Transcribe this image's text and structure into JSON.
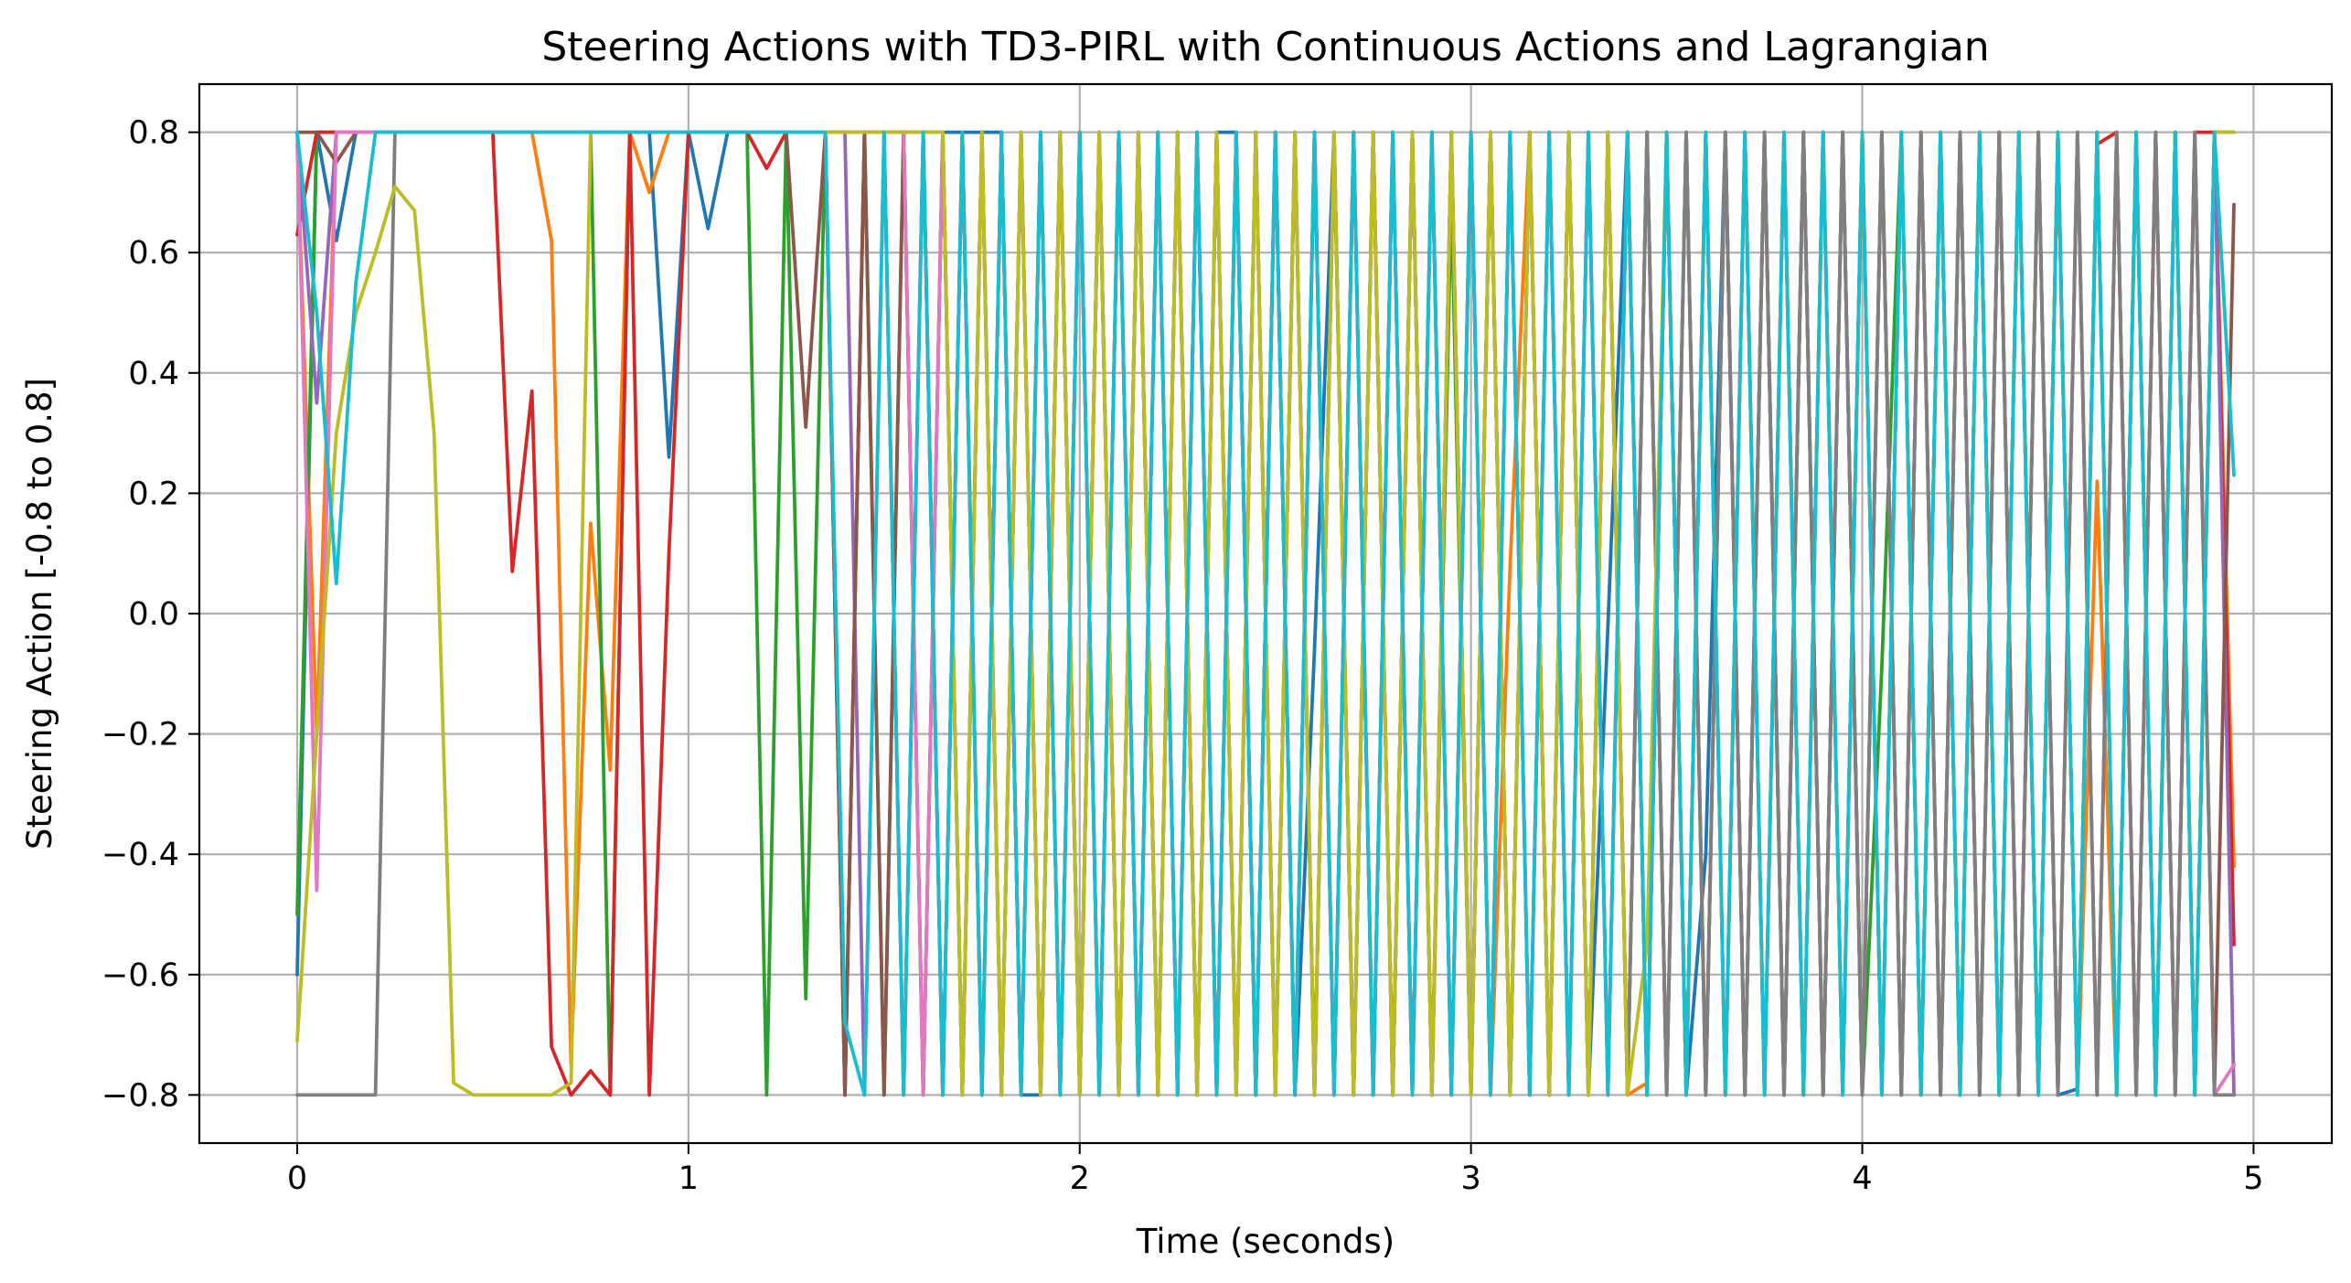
{
  "chart_data": {
    "type": "line",
    "title": "Steering Actions with TD3-PIRL with Continuous Actions and Lagrangian",
    "xlabel": "Time (seconds)",
    "ylabel": "Steering Action [-0.8 to 0.8]",
    "xlim": [
      -0.25,
      5.2
    ],
    "ylim": [
      -0.88,
      0.88
    ],
    "x_ticks": [
      0,
      1,
      2,
      3,
      4,
      5
    ],
    "y_ticks": [
      -0.8,
      -0.6,
      -0.4,
      -0.2,
      0.0,
      0.2,
      0.4,
      0.6,
      0.8
    ],
    "x_tick_labels": [
      "0",
      "1",
      "2",
      "3",
      "4",
      "5"
    ],
    "y_tick_labels": [
      "−0.8",
      "−0.6",
      "−0.4",
      "−0.2",
      "0.0",
      "0.2",
      "0.4",
      "0.6",
      "0.8"
    ],
    "grid": true,
    "legend": "none",
    "time_step": 0.05,
    "num_points": 100,
    "colors": [
      "#1f77b4",
      "#ff7f0e",
      "#2ca02c",
      "#d62728",
      "#9467bd",
      "#8c564b",
      "#e377c2",
      "#7f7f7f",
      "#bcbd22",
      "#17becf"
    ],
    "series": [
      {
        "values": [
          -0.6,
          0.8,
          0.62,
          0.8,
          0.8,
          0.8,
          0.8,
          0.8,
          0.8,
          0.8,
          0.8,
          0.8,
          0.8,
          0.8,
          0.8,
          0.8,
          0.8,
          0.8,
          0.8,
          0.26,
          0.8,
          0.64,
          0.8,
          0.8,
          0.8,
          0.8,
          0.8,
          0.8,
          0.8,
          0.8,
          0.8,
          0.8,
          0.8,
          0.8,
          0.8,
          0.8,
          0.8,
          -0.8,
          -0.8,
          0.8,
          -0.8,
          0.8,
          -0.8,
          0.8,
          -0.8,
          0.8,
          -0.8,
          0.8,
          0.8,
          -0.8,
          0.8,
          -0.8,
          -0.06,
          0.8,
          -0.8,
          0.8,
          -0.8,
          0.8,
          -0.8,
          0.8,
          -0.8,
          0.8,
          -0.8,
          0.8,
          -0.8,
          0.8,
          -0.8,
          -0.02,
          0.8,
          -0.8,
          0.8,
          -0.8,
          -0.4,
          0.8,
          -0.8,
          0.8,
          -0.8,
          0.8,
          -0.8,
          0.8,
          -0.8,
          0.8,
          -0.8,
          0.8,
          -0.8,
          0.8,
          -0.8,
          0.8,
          -0.8,
          0.8,
          -0.8,
          -0.79,
          0.8,
          -0.8,
          0.8,
          -0.8,
          0.8,
          -0.8,
          0.8,
          0.8
        ]
      },
      {
        "values": [
          0.78,
          -0.2,
          0.8,
          0.8,
          0.8,
          0.8,
          0.8,
          0.8,
          0.8,
          0.8,
          0.8,
          0.8,
          0.8,
          0.62,
          -0.75,
          0.15,
          -0.26,
          0.8,
          0.7,
          0.8,
          0.8,
          0.8,
          0.8,
          0.8,
          0.8,
          0.8,
          0.8,
          0.8,
          0.8,
          0.8,
          0.8,
          0.8,
          0.8,
          -0.8,
          0.8,
          -0.8,
          0.8,
          -0.8,
          0.8,
          -0.8,
          0.8,
          -0.8,
          0.8,
          -0.8,
          0.8,
          -0.8,
          0.8,
          -0.8,
          0.8,
          -0.8,
          0.8,
          -0.8,
          0.8,
          -0.8,
          0.8,
          -0.8,
          0.8,
          -0.8,
          0.8,
          -0.8,
          0.8,
          -0.8,
          0.08,
          0.8,
          -0.8,
          0.8,
          -0.8,
          0.8,
          -0.8,
          -0.78,
          0.8,
          -0.8,
          0.8,
          -0.8,
          0.8,
          -0.8,
          0.8,
          -0.8,
          0.8,
          -0.8,
          0.8,
          -0.8,
          0.8,
          -0.8,
          0.8,
          -0.8,
          0.8,
          -0.8,
          0.8,
          -0.8,
          0.8,
          -0.8,
          0.22,
          -0.8,
          0.8,
          -0.8,
          0.8,
          -0.8,
          0.8,
          -0.42
        ]
      },
      {
        "values": [
          -0.5,
          0.8,
          0.8,
          0.8,
          0.8,
          0.8,
          0.8,
          0.8,
          0.8,
          0.8,
          0.8,
          0.8,
          0.8,
          0.8,
          0.8,
          0.8,
          -0.8,
          0.8,
          0.8,
          0.8,
          0.8,
          0.8,
          0.8,
          0.8,
          -0.8,
          0.8,
          -0.64,
          0.8,
          -0.8,
          0.8,
          -0.8,
          0.8,
          -0.8,
          0.8,
          -0.8,
          0.8,
          -0.8,
          0.8,
          -0.8,
          0.8,
          -0.8,
          0.8,
          -0.8,
          0.8,
          -0.8,
          0.8,
          -0.8,
          0.8,
          -0.8,
          0.8,
          -0.8,
          0.8,
          -0.8,
          0.8,
          -0.8,
          0.8,
          -0.8,
          0.8,
          -0.8,
          0.7,
          -0.8,
          0.8,
          -0.8,
          0.8,
          -0.8,
          0.8,
          -0.8,
          0.8,
          -0.8,
          0.8,
          -0.8,
          0.8,
          -0.8,
          0.8,
          -0.8,
          0.8,
          -0.8,
          0.8,
          -0.8,
          0.8,
          -0.8,
          -0.09,
          0.8,
          -0.8,
          0.8,
          -0.8,
          0.8,
          -0.8,
          0.8,
          -0.8,
          0.8,
          -0.8,
          0.8,
          -0.8,
          0.8,
          -0.8,
          0.8,
          -0.8,
          0.8,
          0.8
        ]
      },
      {
        "values": [
          0.63,
          0.8,
          0.8,
          0.8,
          0.8,
          0.8,
          0.8,
          0.8,
          0.8,
          0.8,
          0.8,
          0.07,
          0.37,
          -0.72,
          -0.8,
          -0.76,
          -0.8,
          0.8,
          -0.8,
          0.1,
          0.8,
          0.8,
          0.8,
          0.8,
          0.74,
          0.8,
          0.8,
          0.8,
          -0.8,
          0.8,
          0.8,
          -0.8,
          0.8,
          -0.8,
          0.8,
          -0.8,
          0.8,
          -0.8,
          0.8,
          -0.8,
          0.8,
          -0.8,
          0.8,
          -0.8,
          0.8,
          -0.8,
          0.8,
          -0.8,
          0.8,
          -0.8,
          0.8,
          -0.8,
          0.8,
          -0.8,
          0.8,
          -0.8,
          0.8,
          -0.8,
          0.8,
          -0.8,
          0.8,
          -0.8,
          0.8,
          -0.8,
          0.8,
          -0.8,
          0.8,
          -0.8,
          0.8,
          -0.8,
          0.8,
          -0.8,
          0.8,
          -0.8,
          0.8,
          -0.8,
          0.8,
          -0.8,
          0.8,
          -0.8,
          0.8,
          -0.8,
          0.8,
          -0.8,
          0.8,
          -0.8,
          0.8,
          -0.8,
          0.8,
          -0.8,
          0.8,
          -0.8,
          0.78,
          0.8,
          -0.8,
          0.8,
          -0.8,
          0.8,
          0.8,
          -0.55
        ]
      },
      {
        "values": [
          0.8,
          0.35,
          0.8,
          0.8,
          0.8,
          0.8,
          0.8,
          0.8,
          0.8,
          0.8,
          0.8,
          0.8,
          0.8,
          0.8,
          0.8,
          0.8,
          0.8,
          0.8,
          0.8,
          0.8,
          0.8,
          0.8,
          0.8,
          0.8,
          0.8,
          0.8,
          0.8,
          0.8,
          0.8,
          -0.8,
          0.8,
          -0.8,
          0.8,
          -0.8,
          0.8,
          -0.8,
          0.8,
          -0.8,
          0.8,
          -0.8,
          0.8,
          -0.8,
          0.8,
          -0.8,
          0.8,
          -0.8,
          0.8,
          -0.8,
          0.8,
          -0.8,
          0.8,
          -0.8,
          0.8,
          -0.8,
          0.8,
          -0.8,
          0.8,
          -0.8,
          0.8,
          -0.8,
          0.8,
          -0.8,
          0.8,
          -0.8,
          0.8,
          -0.8,
          0.8,
          -0.8,
          0.8,
          -0.8,
          0.8,
          -0.8,
          0.8,
          -0.8,
          0.8,
          -0.8,
          0.8,
          -0.8,
          0.8,
          -0.8,
          0.8,
          -0.8,
          0.8,
          -0.8,
          0.8,
          -0.8,
          0.8,
          -0.8,
          0.8,
          -0.8,
          0.8,
          -0.8,
          0.8,
          -0.8,
          0.8,
          -0.8,
          0.8,
          -0.8,
          0.8,
          -0.8
        ]
      },
      {
        "values": [
          0.8,
          0.8,
          0.75,
          0.8,
          0.8,
          0.8,
          0.8,
          0.8,
          0.8,
          0.8,
          0.8,
          0.8,
          0.8,
          0.8,
          0.8,
          0.8,
          0.8,
          0.8,
          0.8,
          0.8,
          0.8,
          0.8,
          0.8,
          0.8,
          0.8,
          0.8,
          0.31,
          0.8,
          -0.8,
          0.8,
          -0.8,
          0.8,
          -0.8,
          0.8,
          -0.8,
          0.8,
          -0.8,
          0.8,
          -0.8,
          0.8,
          -0.8,
          0.8,
          -0.8,
          0.8,
          -0.8,
          0.8,
          -0.8,
          0.8,
          -0.8,
          0.8,
          -0.8,
          0.8,
          -0.8,
          0.8,
          -0.8,
          0.8,
          -0.8,
          0.8,
          -0.8,
          0.8,
          -0.8,
          0.8,
          -0.8,
          0.8,
          -0.8,
          0.8,
          -0.8,
          0.8,
          -0.8,
          0.8,
          -0.8,
          0.8,
          -0.8,
          0.8,
          -0.8,
          0.8,
          -0.8,
          0.8,
          -0.8,
          0.8,
          -0.8,
          0.8,
          -0.8,
          0.8,
          -0.8,
          0.8,
          -0.8,
          0.8,
          -0.8,
          0.8,
          -0.8,
          0.8,
          -0.8,
          0.8,
          -0.8,
          0.8,
          -0.8,
          0.8,
          -0.8,
          0.68
        ]
      },
      {
        "values": [
          0.8,
          -0.46,
          0.8,
          0.8,
          0.8,
          0.8,
          0.8,
          0.8,
          0.8,
          0.8,
          0.8,
          0.8,
          0.8,
          0.8,
          0.8,
          0.8,
          0.8,
          0.8,
          0.8,
          0.8,
          0.8,
          0.8,
          0.8,
          0.8,
          0.8,
          0.8,
          0.8,
          0.8,
          0.8,
          0.8,
          0.8,
          0.8,
          -0.8,
          0.8,
          -0.8,
          0.8,
          -0.8,
          0.8,
          -0.8,
          0.8,
          -0.8,
          0.8,
          -0.8,
          0.8,
          -0.8,
          0.8,
          -0.8,
          0.8,
          -0.8,
          0.8,
          -0.8,
          0.8,
          -0.8,
          0.8,
          -0.8,
          0.8,
          -0.8,
          0.8,
          -0.8,
          0.8,
          -0.8,
          0.8,
          -0.8,
          0.8,
          -0.8,
          0.8,
          -0.8,
          0.8,
          -0.8,
          0.8,
          -0.8,
          0.8,
          -0.8,
          0.8,
          -0.8,
          0.8,
          -0.8,
          0.8,
          -0.8,
          0.8,
          -0.8,
          0.8,
          -0.8,
          0.8,
          -0.8,
          0.8,
          -0.8,
          0.8,
          -0.8,
          0.8,
          -0.8,
          0.8,
          -0.8,
          0.8,
          -0.8,
          0.8,
          -0.8,
          0.8,
          -0.8,
          -0.75
        ]
      },
      {
        "values": [
          -0.8,
          -0.8,
          -0.8,
          -0.8,
          -0.8,
          0.8,
          0.8,
          0.8,
          0.8,
          0.8,
          0.8,
          0.8,
          0.8,
          0.8,
          0.8,
          0.8,
          0.8,
          0.8,
          0.8,
          0.8,
          0.8,
          0.8,
          0.8,
          0.8,
          0.8,
          0.8,
          0.8,
          0.8,
          0.8,
          0.8,
          0.8,
          0.8,
          0.8,
          0.8,
          -0.8,
          0.8,
          -0.8,
          0.8,
          -0.8,
          0.8,
          -0.8,
          0.8,
          -0.8,
          0.8,
          -0.8,
          0.8,
          -0.8,
          0.8,
          -0.8,
          0.8,
          -0.8,
          0.8,
          -0.8,
          0.8,
          -0.8,
          0.8,
          -0.8,
          0.8,
          -0.8,
          0.8,
          -0.8,
          0.8,
          -0.8,
          0.8,
          -0.8,
          0.8,
          -0.8,
          0.8,
          -0.8,
          0.8,
          -0.8,
          0.8,
          -0.8,
          0.8,
          -0.8,
          0.8,
          -0.8,
          0.8,
          -0.8,
          0.8,
          -0.8,
          0.8,
          -0.8,
          0.8,
          -0.8,
          0.8,
          -0.8,
          0.8,
          -0.8,
          0.8,
          -0.8,
          0.8,
          -0.8,
          0.8,
          -0.8,
          0.8,
          -0.8,
          0.8,
          -0.8,
          -0.8
        ]
      },
      {
        "values": [
          -0.71,
          -0.2,
          0.3,
          0.5,
          0.6,
          0.71,
          0.67,
          0.3,
          -0.78,
          -0.8,
          -0.8,
          -0.8,
          -0.8,
          -0.8,
          -0.78,
          0.8,
          0.8,
          0.8,
          0.8,
          0.8,
          0.8,
          0.8,
          0.8,
          0.8,
          0.8,
          0.8,
          0.8,
          0.8,
          0.8,
          0.8,
          0.8,
          0.8,
          0.8,
          0.8,
          -0.8,
          0.8,
          -0.8,
          0.8,
          -0.8,
          0.8,
          -0.8,
          0.8,
          -0.8,
          0.8,
          -0.8,
          0.8,
          -0.8,
          0.8,
          -0.8,
          0.8,
          -0.8,
          0.8,
          -0.8,
          0.8,
          -0.8,
          0.8,
          -0.8,
          0.8,
          -0.8,
          0.8,
          -0.8,
          0.8,
          -0.8,
          0.8,
          -0.8,
          0.8,
          -0.8,
          0.8,
          -0.8,
          -0.55,
          0.8,
          -0.8,
          0.8,
          -0.8,
          0.8,
          -0.8,
          0.8,
          -0.8,
          0.8,
          -0.8,
          0.8,
          -0.8,
          0.8,
          -0.8,
          0.8,
          -0.8,
          0.8,
          -0.8,
          0.8,
          -0.8,
          0.8,
          -0.8,
          0.8,
          -0.8,
          0.8,
          -0.8,
          0.8,
          -0.8,
          0.8,
          0.8
        ]
      },
      {
        "values": [
          0.8,
          0.5,
          0.05,
          0.55,
          0.8,
          0.8,
          0.8,
          0.8,
          0.8,
          0.8,
          0.8,
          0.8,
          0.8,
          0.8,
          0.8,
          0.8,
          0.8,
          0.8,
          0.8,
          0.8,
          0.8,
          0.8,
          0.8,
          0.8,
          0.8,
          0.8,
          0.8,
          0.8,
          -0.68,
          -0.8,
          0.8,
          -0.8,
          0.8,
          -0.8,
          0.8,
          -0.8,
          0.8,
          -0.8,
          0.8,
          -0.8,
          0.8,
          -0.8,
          0.8,
          -0.8,
          0.8,
          -0.8,
          0.8,
          -0.8,
          0.8,
          -0.8,
          0.8,
          -0.8,
          0.8,
          -0.8,
          0.8,
          -0.8,
          0.8,
          -0.8,
          0.8,
          -0.8,
          0.8,
          -0.8,
          0.8,
          -0.8,
          0.8,
          -0.8,
          0.8,
          -0.8,
          0.8,
          -0.8,
          0.8,
          -0.8,
          0.8,
          -0.8,
          0.8,
          -0.8,
          0.8,
          -0.8,
          0.8,
          -0.8,
          0.8,
          -0.8,
          0.8,
          -0.8,
          0.8,
          -0.8,
          0.8,
          -0.8,
          0.8,
          -0.8,
          0.8,
          -0.8,
          0.8,
          -0.8,
          0.8,
          -0.8,
          0.8,
          -0.8,
          0.8,
          0.23
        ]
      }
    ]
  }
}
